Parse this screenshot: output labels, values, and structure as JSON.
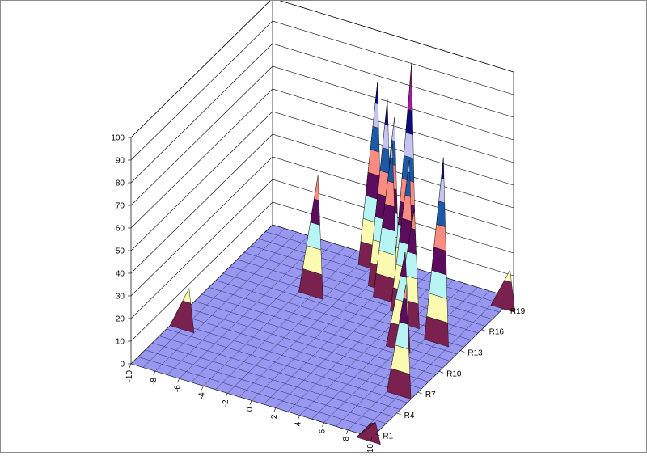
{
  "chart_data": {
    "type": "surface3d",
    "title": "",
    "grid": true,
    "z_axis": {
      "ticks": [
        "0",
        "10",
        "20",
        "30",
        "40",
        "50",
        "60",
        "70",
        "80",
        "90",
        "100"
      ],
      "range": [
        0,
        100
      ]
    },
    "x_axis": {
      "ticks": [
        "-10",
        "-8",
        "-6",
        "-4",
        "-2",
        "0",
        "2",
        "4",
        "6",
        "8",
        "10"
      ],
      "range": [
        -10,
        10
      ]
    },
    "y_axis": {
      "ticks": [
        "R1",
        "R4",
        "R7",
        "R10",
        "R13",
        "R16",
        "R19"
      ],
      "rows": [
        "R1",
        "R2",
        "R3",
        "R4",
        "R5",
        "R6",
        "R7",
        "R8",
        "R9",
        "R10",
        "R11",
        "R12",
        "R13",
        "R14",
        "R15",
        "R16",
        "R17",
        "R18",
        "R19",
        "R20"
      ]
    },
    "colors": {
      "floor": "#9898f0",
      "bands": [
        "#7a2150",
        "#fafab0",
        "#b8f4f4",
        "#5c0c5c",
        "#fa8c82",
        "#1a5aa8",
        "#c4c4f4",
        "#0c0c7a",
        "#9c1a9c"
      ]
    },
    "peaks": [
      {
        "x": -9,
        "row": 7,
        "value": 15
      },
      {
        "x": -3,
        "row": 15,
        "value": 50
      },
      {
        "x": -1,
        "row": 20,
        "value": 79
      },
      {
        "x": 1,
        "row": 18,
        "value": 81
      },
      {
        "x": 1,
        "row": 19,
        "value": 70
      },
      {
        "x": 2,
        "row": 17,
        "value": 66
      },
      {
        "x": 3,
        "row": 18,
        "value": 100
      },
      {
        "x": 4,
        "row": 16,
        "value": 65
      },
      {
        "x": 5,
        "row": 15,
        "value": 48
      },
      {
        "x": 6,
        "row": 12,
        "value": 40
      },
      {
        "x": 8,
        "row": 14,
        "value": 79
      },
      {
        "x": 9,
        "row": 7,
        "value": 46
      },
      {
        "x": 10,
        "row": 1,
        "value": 5
      },
      {
        "x": 10,
        "row": 20,
        "value": 14
      }
    ]
  }
}
